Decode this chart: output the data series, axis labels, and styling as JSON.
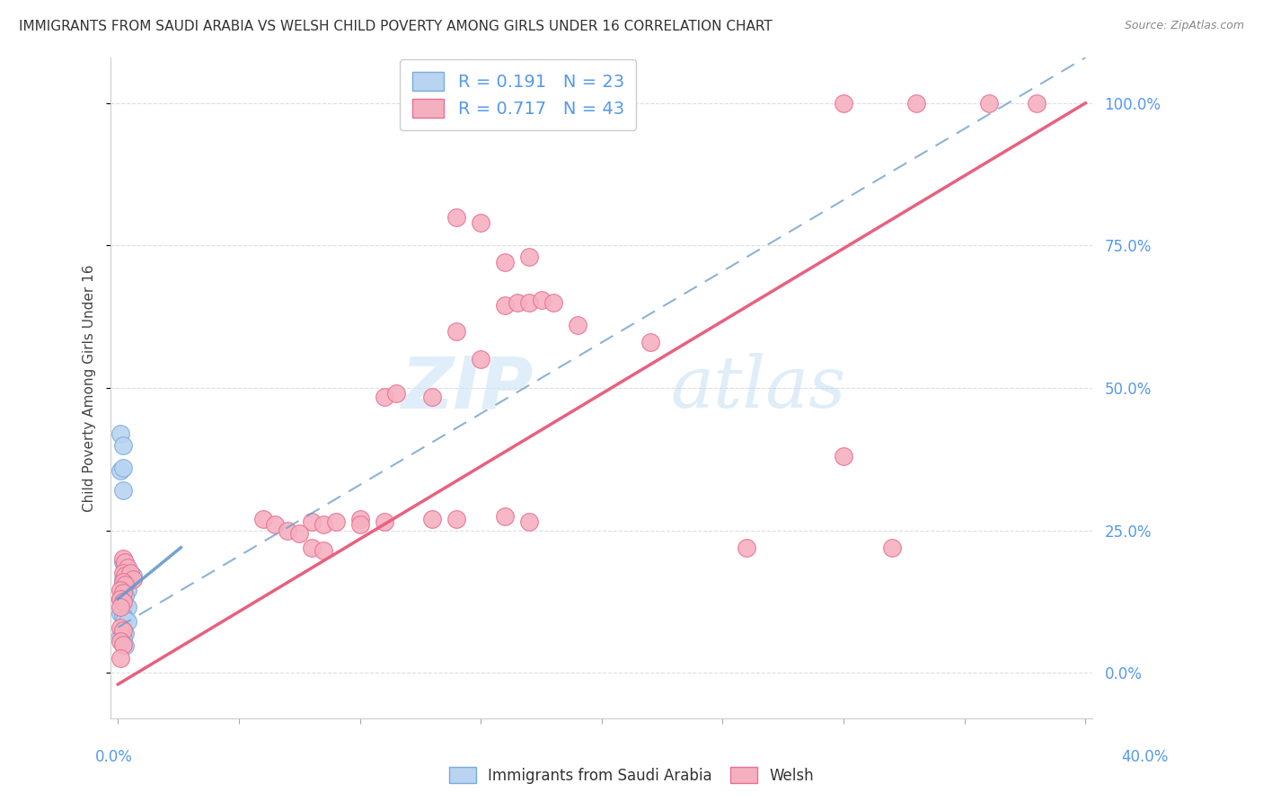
{
  "title": "IMMIGRANTS FROM SAUDI ARABIA VS WELSH CHILD POVERTY AMONG GIRLS UNDER 16 CORRELATION CHART",
  "source": "Source: ZipAtlas.com",
  "ylabel": "Child Poverty Among Girls Under 16",
  "xlim": [
    0.0,
    0.4
  ],
  "ylim": [
    -0.08,
    1.08
  ],
  "blue_color": "#b8d4f0",
  "pink_color": "#f5b0c0",
  "blue_edge_color": "#7aabdd",
  "pink_edge_color": "#e87090",
  "blue_line_color": "#6699cc",
  "pink_line_color": "#e86080",
  "watermark_color": "#cce4f5",
  "grid_color": "#dddddd",
  "background_color": "#ffffff",
  "blue_scatter": [
    [
      0.002,
      0.195
    ],
    [
      0.003,
      0.185
    ],
    [
      0.004,
      0.18
    ],
    [
      0.002,
      0.165
    ],
    [
      0.003,
      0.16
    ],
    [
      0.004,
      0.165
    ],
    [
      0.005,
      0.175
    ],
    [
      0.006,
      0.17
    ],
    [
      0.002,
      0.155
    ],
    [
      0.003,
      0.15
    ],
    [
      0.004,
      0.145
    ],
    [
      0.002,
      0.14
    ],
    [
      0.003,
      0.135
    ],
    [
      0.001,
      0.13
    ],
    [
      0.002,
      0.125
    ],
    [
      0.003,
      0.12
    ],
    [
      0.004,
      0.115
    ],
    [
      0.001,
      0.105
    ],
    [
      0.002,
      0.1
    ],
    [
      0.003,
      0.095
    ],
    [
      0.004,
      0.09
    ],
    [
      0.002,
      0.075
    ],
    [
      0.003,
      0.07
    ],
    [
      0.001,
      0.065
    ],
    [
      0.002,
      0.06
    ],
    [
      0.002,
      0.05
    ],
    [
      0.003,
      0.048
    ],
    [
      0.001,
      0.42
    ],
    [
      0.002,
      0.4
    ],
    [
      0.001,
      0.355
    ],
    [
      0.002,
      0.36
    ],
    [
      0.002,
      0.32
    ]
  ],
  "pink_scatter": [
    [
      0.002,
      0.2
    ],
    [
      0.003,
      0.195
    ],
    [
      0.004,
      0.185
    ],
    [
      0.002,
      0.175
    ],
    [
      0.003,
      0.17
    ],
    [
      0.005,
      0.175
    ],
    [
      0.006,
      0.165
    ],
    [
      0.002,
      0.16
    ],
    [
      0.003,
      0.155
    ],
    [
      0.001,
      0.145
    ],
    [
      0.002,
      0.14
    ],
    [
      0.001,
      0.13
    ],
    [
      0.002,
      0.125
    ],
    [
      0.001,
      0.115
    ],
    [
      0.001,
      0.08
    ],
    [
      0.002,
      0.075
    ],
    [
      0.001,
      0.055
    ],
    [
      0.002,
      0.05
    ],
    [
      0.001,
      0.025
    ],
    [
      0.06,
      0.27
    ],
    [
      0.065,
      0.26
    ],
    [
      0.08,
      0.265
    ],
    [
      0.085,
      0.26
    ],
    [
      0.09,
      0.265
    ],
    [
      0.1,
      0.27
    ],
    [
      0.11,
      0.265
    ],
    [
      0.07,
      0.25
    ],
    [
      0.075,
      0.245
    ],
    [
      0.08,
      0.22
    ],
    [
      0.085,
      0.215
    ],
    [
      0.1,
      0.26
    ],
    [
      0.13,
      0.27
    ],
    [
      0.14,
      0.27
    ],
    [
      0.16,
      0.275
    ],
    [
      0.17,
      0.265
    ],
    [
      0.11,
      0.485
    ],
    [
      0.115,
      0.49
    ],
    [
      0.13,
      0.485
    ],
    [
      0.15,
      0.55
    ],
    [
      0.14,
      0.6
    ],
    [
      0.16,
      0.645
    ],
    [
      0.165,
      0.65
    ],
    [
      0.17,
      0.65
    ],
    [
      0.175,
      0.655
    ],
    [
      0.18,
      0.65
    ],
    [
      0.16,
      0.72
    ],
    [
      0.17,
      0.73
    ],
    [
      0.14,
      0.8
    ],
    [
      0.15,
      0.79
    ],
    [
      0.19,
      0.61
    ],
    [
      0.22,
      0.58
    ],
    [
      0.3,
      0.38
    ],
    [
      0.26,
      0.22
    ],
    [
      0.32,
      0.22
    ],
    [
      0.3,
      1.0
    ],
    [
      0.33,
      1.0
    ],
    [
      0.36,
      1.0
    ],
    [
      0.38,
      1.0
    ]
  ],
  "blue_line": {
    "x0": 0.0,
    "x1": 0.4,
    "y0": 0.13,
    "y1": 0.22
  },
  "pink_line": {
    "x0": 0.0,
    "x1": 0.4,
    "y0": -0.02,
    "y1": 1.0
  },
  "blue_dash_line": {
    "x0": 0.0,
    "x1": 0.4,
    "y0": 0.08,
    "y1": 1.08
  }
}
